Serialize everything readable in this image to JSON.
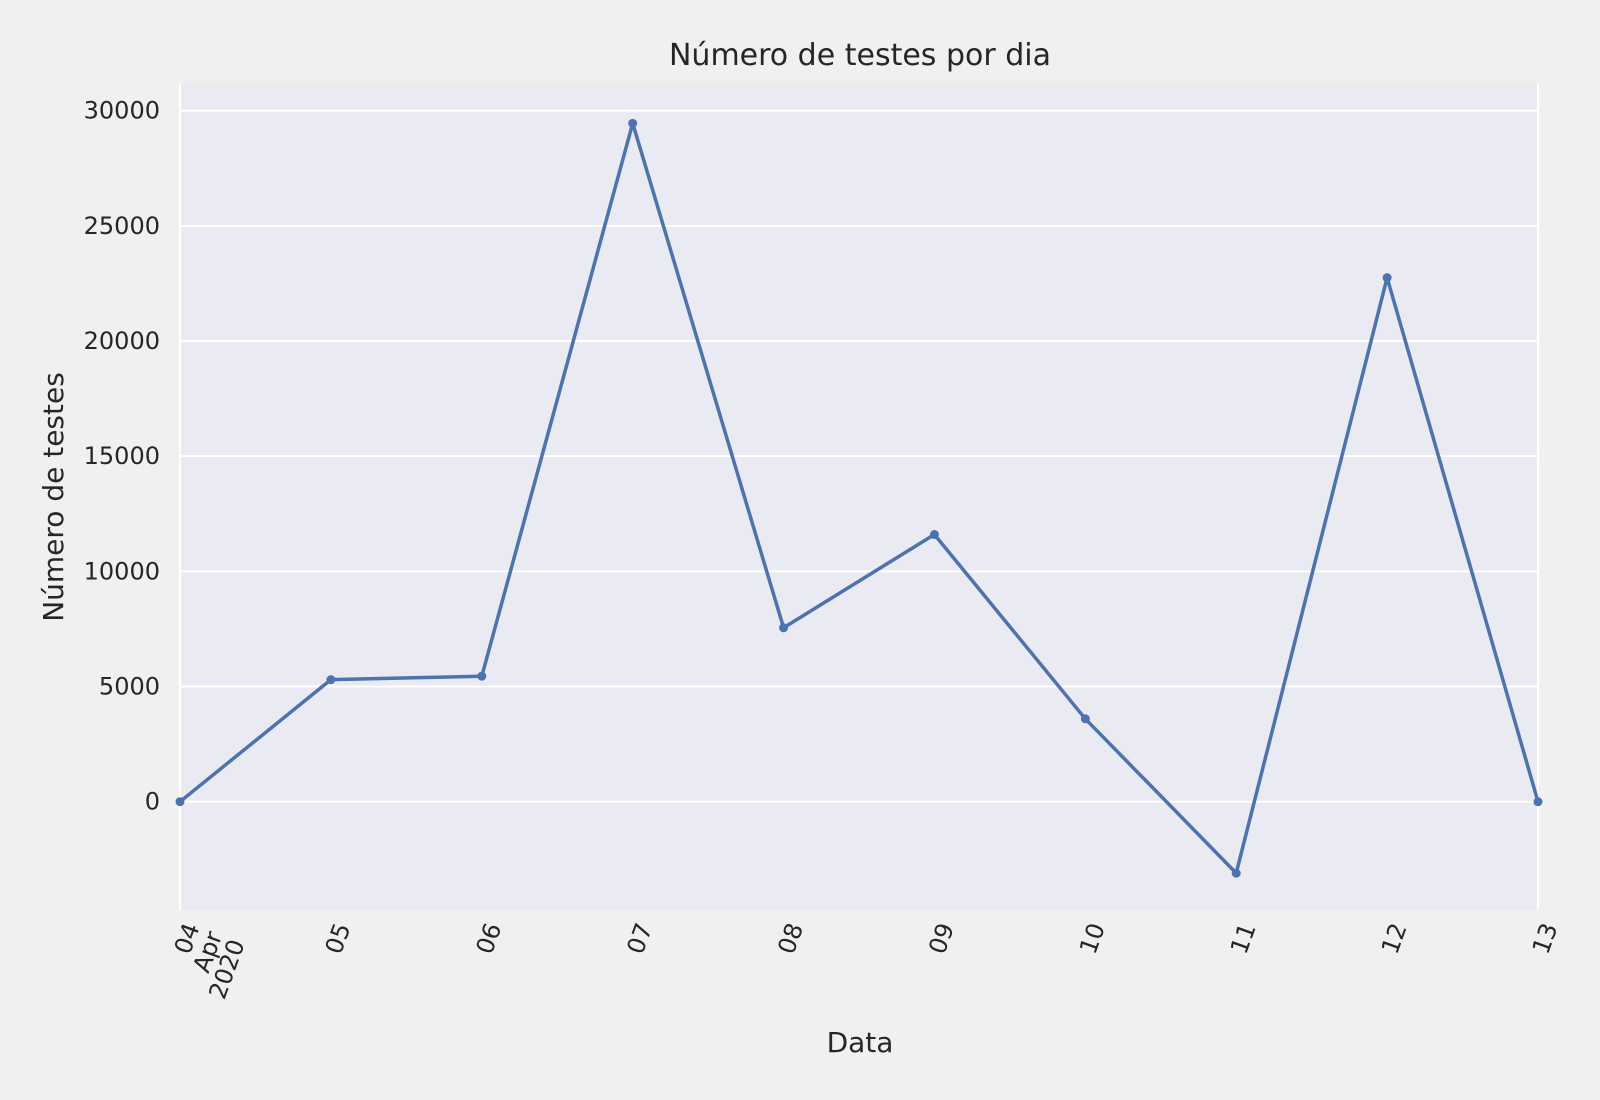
{
  "chart_data": {
    "type": "line",
    "title": "Número de testes por dia",
    "xlabel": "Data",
    "ylabel": "Número de testes",
    "x_tick_labels": [
      "04\nApr\n2020",
      "05",
      "06",
      "07",
      "08",
      "09",
      "10",
      "11",
      "12",
      "13"
    ],
    "y_tick_labels": [
      "0",
      "5000",
      "10000",
      "15000",
      "20000",
      "25000",
      "30000"
    ],
    "ylim": [
      -4700,
      31200
    ],
    "xlim": [
      "2020-04-04",
      "2020-04-13"
    ],
    "grid": true,
    "series": [
      {
        "color": "#4c72b0",
        "x": [
          "2020-04-04",
          "2020-04-05",
          "2020-04-06",
          "2020-04-07",
          "2020-04-08",
          "2020-04-09",
          "2020-04-10",
          "2020-04-11",
          "2020-04-12",
          "2020-04-13"
        ],
        "values": [
          0,
          5300,
          5450,
          29450,
          7550,
          11600,
          3600,
          -3100,
          22750,
          0
        ]
      }
    ],
    "colors": {
      "background": "#f0f0f0",
      "plot_background": "#eaeaf2",
      "grid": "#ffffff",
      "line": "#4c72b0",
      "text": "#262626"
    }
  }
}
